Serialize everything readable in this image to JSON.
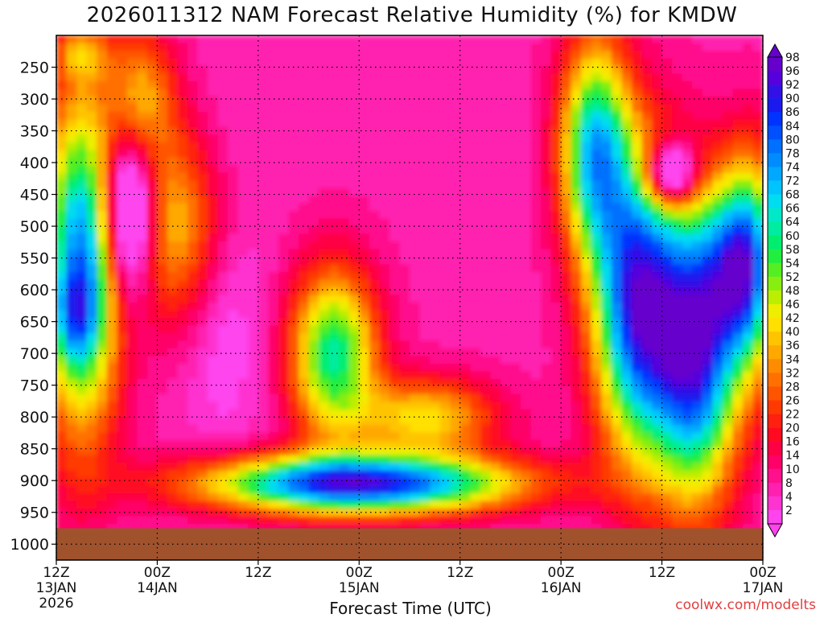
{
  "chart_data": {
    "type": "heatmap",
    "title": "2026011312 NAM Forecast Relative Humidity (%) for KMDW",
    "xlabel": "Forecast Time (UTC)",
    "ylabel": "",
    "y_ticks": [
      "250",
      "300",
      "350",
      "400",
      "450",
      "500",
      "550",
      "600",
      "650",
      "700",
      "750",
      "800",
      "850",
      "900",
      "950",
      "1000"
    ],
    "x_ticks": [
      {
        "hour": 0,
        "line1": "12Z",
        "line2": "13JAN",
        "line3": "2026"
      },
      {
        "hour": 12,
        "line1": "00Z",
        "line2": "14JAN",
        "line3": ""
      },
      {
        "hour": 24,
        "line1": "12Z",
        "line2": "",
        "line3": ""
      },
      {
        "hour": 36,
        "line1": "00Z",
        "line2": "15JAN",
        "line3": ""
      },
      {
        "hour": 48,
        "line1": "12Z",
        "line2": "",
        "line3": ""
      },
      {
        "hour": 60,
        "line1": "00Z",
        "line2": "16JAN",
        "line3": ""
      },
      {
        "hour": 72,
        "line1": "12Z",
        "line2": "",
        "line3": ""
      },
      {
        "hour": 84,
        "line1": "00Z",
        "line2": "17JAN",
        "line3": ""
      }
    ],
    "x_range_hours": [
      0,
      84
    ],
    "y_range_hpa": [
      200,
      1025
    ],
    "colorbar_levels": [
      "98",
      "96",
      "92",
      "90",
      "86",
      "84",
      "80",
      "78",
      "74",
      "72",
      "68",
      "66",
      "64",
      "60",
      "58",
      "54",
      "52",
      "48",
      "46",
      "42",
      "40",
      "36",
      "34",
      "32",
      "28",
      "26",
      "22",
      "20",
      "16",
      "14",
      "10",
      "8",
      "4",
      "2"
    ],
    "colorbar_colors": [
      "#6600cc",
      "#5500dd",
      "#3311e6",
      "#1a1aee",
      "#0033ff",
      "#0050ff",
      "#0070ff",
      "#008cff",
      "#00a8ff",
      "#00c4ff",
      "#00dcf0",
      "#00e8c8",
      "#00eca0",
      "#00ee70",
      "#22ee40",
      "#55ee22",
      "#88ee11",
      "#bbee00",
      "#eeee00",
      "#ffe000",
      "#ffc400",
      "#ffa800",
      "#ff8c00",
      "#ff7000",
      "#ff5500",
      "#ff3a00",
      "#ff2010",
      "#ff0a20",
      "#ff0045",
      "#ff0068",
      "#ff108c",
      "#ff20b0",
      "#ff33d0",
      "#ff44ee"
    ],
    "grid": true,
    "surface_color": "#a0522d",
    "surface_top_hpa": 975,
    "fields_description_note": ""
  },
  "credit": "coolwx.com/modelts"
}
